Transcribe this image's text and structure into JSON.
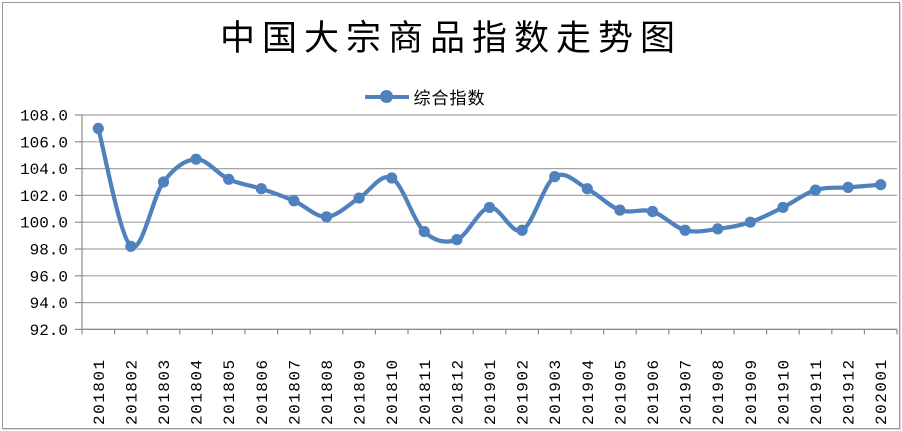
{
  "title": "中国大宗商品指数走势图",
  "legend": {
    "label": "综合指数"
  },
  "chart_data": {
    "type": "line",
    "title": "中国大宗商品指数走势图",
    "xlabel": "",
    "ylabel": "",
    "categories": [
      "201801",
      "201802",
      "201803",
      "201804",
      "201805",
      "201806",
      "201807",
      "201808",
      "201809",
      "201810",
      "201811",
      "201812",
      "201901",
      "201902",
      "201903",
      "201904",
      "201905",
      "201906",
      "201907",
      "201908",
      "201909",
      "201910",
      "201911",
      "201912",
      "202001"
    ],
    "series": [
      {
        "name": "综合指数",
        "values": [
          107.0,
          98.2,
          103.0,
          104.7,
          103.2,
          102.5,
          101.6,
          100.4,
          101.8,
          103.3,
          99.3,
          98.7,
          101.1,
          99.4,
          103.4,
          102.5,
          100.9,
          100.8,
          99.4,
          99.5,
          100.0,
          101.1,
          102.4,
          102.6,
          102.8
        ]
      }
    ],
    "ylim": [
      92.0,
      108.0
    ],
    "ytick_step": 2.0,
    "ytick_labels": [
      "92.0",
      "94.0",
      "96.0",
      "98.0",
      "100.0",
      "102.0",
      "104.0",
      "106.0",
      "108.0"
    ],
    "grid": true,
    "smoothed_line": true,
    "legend_position": "top-center",
    "line_color": "#4F81BD",
    "marker_color": "#4F81BD",
    "grid_color": "#A3A3A3",
    "axis_color": "#8C8C8C",
    "label_color": "#000000"
  }
}
